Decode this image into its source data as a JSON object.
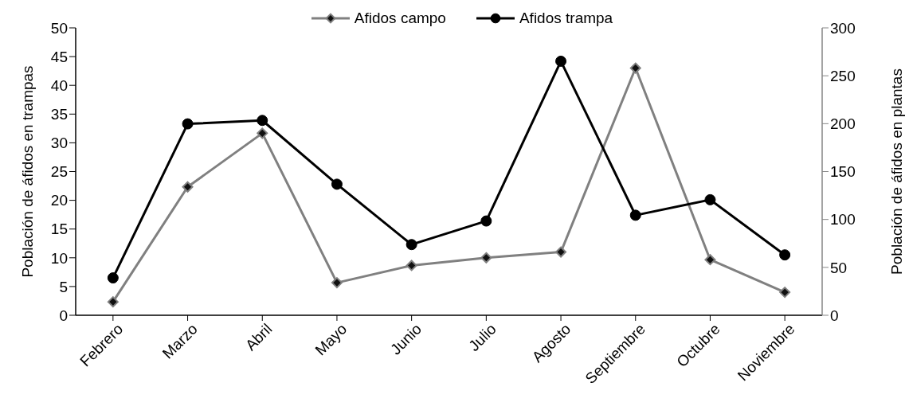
{
  "chart_data": {
    "type": "line",
    "ylabel": "Población de áfidos en trampas",
    "y2label": "Población de áfidos en plantas",
    "categories": [
      "Febrero",
      "Marzo",
      "Abril",
      "Mayo",
      "Junio",
      "Julio",
      "Agosto",
      "Septiembre",
      "Octubre",
      "Noviembre"
    ],
    "series": [
      {
        "name": "Afidos campo",
        "color": "#808080",
        "axis": "y2",
        "marker": "diamond",
        "values": [
          14,
          134,
          190,
          34,
          52,
          60,
          66,
          258,
          58,
          24
        ]
      },
      {
        "name": "Afidos trampa",
        "color": "#000000",
        "marker": "circle",
        "values": [
          6.5,
          33.3,
          33.9,
          22.8,
          12.3,
          16.4,
          44.2,
          17.4,
          20.1,
          10.5
        ]
      }
    ],
    "ylim": [
      0,
      50
    ],
    "yticks": [
      0,
      5,
      10,
      15,
      20,
      25,
      30,
      35,
      40,
      45,
      50
    ],
    "y2lim": [
      0,
      300
    ],
    "y2ticks": [
      0,
      50,
      100,
      150,
      200,
      250,
      300
    ],
    "legend": "top",
    "line_style": "solid",
    "grid": false
  }
}
